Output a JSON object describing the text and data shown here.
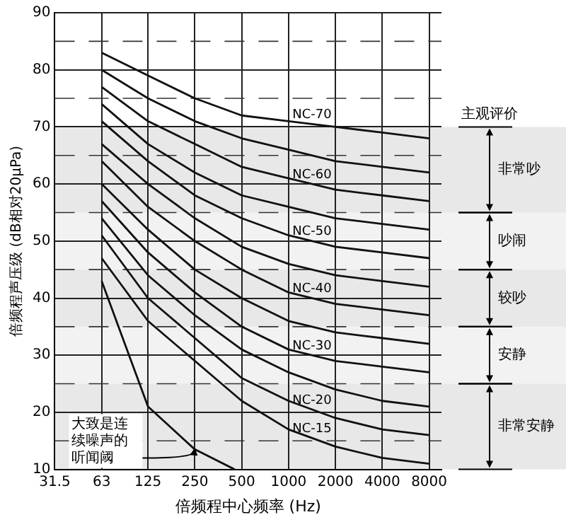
{
  "chart_data": {
    "type": "line",
    "xlabel": "倍频程中心频率 (Hz)",
    "ylabel": "倍频程声压级 (dB相对20μPa)",
    "log": "x",
    "xlim": [
      31.5,
      9600
    ],
    "xticks": [
      31.5,
      63,
      125,
      250,
      500,
      1000,
      2000,
      4000,
      8000
    ],
    "ylim": [
      10,
      90
    ],
    "yticks": [
      10,
      20,
      30,
      40,
      50,
      60,
      70,
      80,
      90
    ],
    "grid": true,
    "legend": false,
    "marker": "none",
    "line_style": "solid",
    "x": [
      63,
      125,
      250,
      500,
      1000,
      2000,
      4000,
      8000
    ],
    "series": [
      {
        "name": "NC-70",
        "color": "#111111",
        "values": [
          83,
          79,
          75,
          72,
          71,
          70,
          69,
          68
        ]
      },
      {
        "color": "#111111",
        "values": [
          80,
          75,
          71,
          68,
          66,
          64,
          63,
          62
        ]
      },
      {
        "name": "NC-60",
        "color": "#111111",
        "values": [
          77,
          71,
          67,
          63,
          61,
          59,
          58,
          57
        ]
      },
      {
        "color": "#111111",
        "values": [
          74,
          67,
          62,
          58,
          56,
          54,
          53,
          52
        ]
      },
      {
        "name": "NC-50",
        "color": "#111111",
        "values": [
          71,
          64,
          58,
          54,
          51,
          49,
          48,
          47
        ]
      },
      {
        "color": "#111111",
        "values": [
          67,
          60,
          54,
          49,
          46,
          44,
          43,
          42
        ]
      },
      {
        "name": "NC-40",
        "color": "#111111",
        "values": [
          64,
          56,
          50,
          45,
          41,
          39,
          38,
          37
        ]
      },
      {
        "color": "#111111",
        "values": [
          60,
          52,
          45,
          40,
          36,
          34,
          33,
          32
        ]
      },
      {
        "name": "NC-30",
        "color": "#111111",
        "values": [
          57,
          48,
          41,
          35,
          31,
          29,
          28,
          27
        ]
      },
      {
        "color": "#111111",
        "values": [
          54,
          44,
          37,
          31,
          27,
          24,
          22,
          21
        ]
      },
      {
        "name": "NC-20",
        "color": "#111111",
        "values": [
          51,
          40,
          33,
          26,
          22,
          19,
          17,
          16
        ]
      },
      {
        "name": "NC-15",
        "color": "#111111",
        "values": [
          47,
          36,
          29,
          22,
          17,
          14,
          12,
          11
        ]
      },
      {
        "color": "#111111",
        "x": [
          63,
          125,
          250,
          450
        ],
        "values": [
          43,
          21,
          13.5,
          10
        ]
      }
    ],
    "bands": [
      {
        "axis": "y",
        "from": 55,
        "to": 70,
        "label": "非常吵"
      },
      {
        "axis": "y",
        "from": 45,
        "to": 55,
        "label": "吵闹"
      },
      {
        "axis": "y",
        "from": 35,
        "to": 45,
        "label": "较吵"
      },
      {
        "axis": "y",
        "from": 25,
        "to": 35,
        "label": "安静"
      },
      {
        "axis": "y",
        "from": 10,
        "to": 25,
        "label": "非常安静"
      }
    ],
    "annotations": [
      "主观评价",
      {
        "text": "大致是连续噪声的听闻阈",
        "x": 250,
        "y": 14
      }
    ]
  }
}
